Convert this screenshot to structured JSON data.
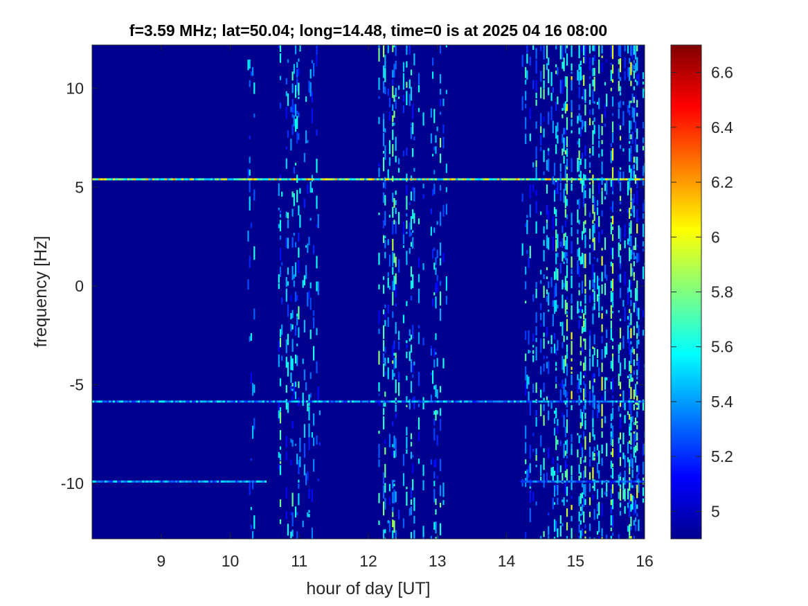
{
  "chart_data": {
    "type": "heatmap",
    "title": "f=3.59 MHz;  lat=50.04; long=14.48, time=0 is at 2025 04 16 08:00",
    "xlabel": "hour of day [UT]",
    "ylabel": "frequency [Hz]",
    "xlim": [
      8,
      16
    ],
    "ylim": [
      -12.8,
      12.2
    ],
    "xticks": [
      9,
      10,
      11,
      12,
      13,
      14,
      15,
      16
    ],
    "xtick_labels": [
      "9",
      "10",
      "11",
      "12",
      "13",
      "14",
      "15",
      "16"
    ],
    "yticks": [
      10,
      5,
      0,
      -5,
      -10
    ],
    "ytick_labels": [
      "10",
      "5",
      "0",
      "-5",
      "-10"
    ],
    "colormap": "jet",
    "clim": [
      4.9,
      6.7
    ],
    "colorbar_ticks": [
      6.6,
      6.4,
      6.2,
      6,
      5.8,
      5.6,
      5.4,
      5.2,
      5
    ],
    "colorbar_tick_labels": [
      "6.6",
      "6.4",
      "6.2",
      "6",
      "5.8",
      "5.6",
      "5.4",
      "5.2",
      "5"
    ],
    "background_value": 4.95,
    "spectral_lines": [
      {
        "freq": 5.4,
        "from": 8.0,
        "to": 16.0,
        "strength": 0.55
      },
      {
        "freq": -5.85,
        "from": 8.0,
        "to": 16.0,
        "strength": 0.3
      },
      {
        "freq": -9.9,
        "from": 8.0,
        "to": 10.5,
        "strength": 0.3
      },
      {
        "freq": -9.9,
        "from": 14.2,
        "to": 16.0,
        "strength": 0.25
      }
    ],
    "noise_bands": [
      {
        "from": 10.25,
        "to": 10.35,
        "level": 0.35
      },
      {
        "from": 10.65,
        "to": 11.0,
        "level": 0.55
      },
      {
        "from": 11.0,
        "to": 11.3,
        "level": 0.3
      },
      {
        "from": 12.1,
        "to": 12.5,
        "level": 0.75
      },
      {
        "from": 12.5,
        "to": 12.8,
        "level": 0.55
      },
      {
        "from": 12.9,
        "to": 13.15,
        "level": 0.6
      },
      {
        "from": 14.2,
        "to": 14.8,
        "level": 0.6
      },
      {
        "from": 14.8,
        "to": 16.0,
        "level": 0.95
      }
    ]
  },
  "colors": {
    "plot_background": "#00008f",
    "axis_color": "#262626"
  }
}
